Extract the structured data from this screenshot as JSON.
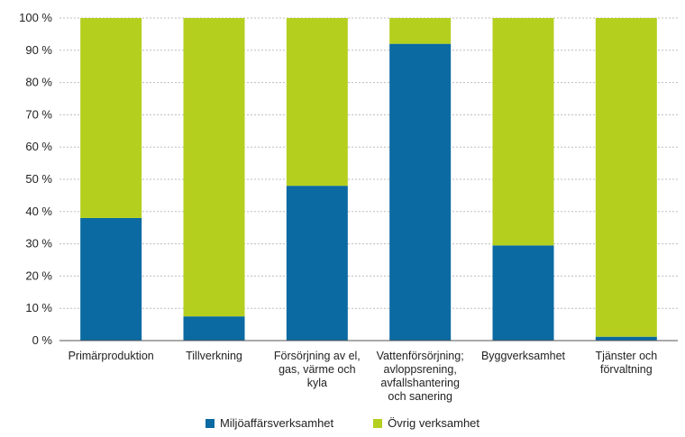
{
  "colors": {
    "series1": "#0a6aa1",
    "series2": "#b5cf1f",
    "gridline": "#bdbdbd",
    "axis": "#555555",
    "text": "#222222"
  },
  "chart_data": {
    "type": "bar",
    "stacked": true,
    "ylim": [
      0,
      100
    ],
    "yticks": [
      0,
      10,
      20,
      30,
      40,
      50,
      60,
      70,
      80,
      90,
      100
    ],
    "ytick_labels": [
      "0 %",
      "10 %",
      "20 %",
      "30 %",
      "40 %",
      "50 %",
      "60 %",
      "70 %",
      "80 %",
      "90 %",
      "100 %"
    ],
    "grid": true,
    "legend_position": "bottom",
    "categories": [
      [
        "Primärproduktion"
      ],
      [
        "Tillverkning"
      ],
      [
        "Försörjning av el,",
        "gas, värme och",
        "kyla"
      ],
      [
        "Vattenförsörjning;",
        "avloppsrening,",
        "avfallshantering",
        "och sanering"
      ],
      [
        "Byggverksamhet"
      ],
      [
        "Tjänster och",
        "förvaltning"
      ]
    ],
    "series": [
      {
        "name": "Miljöaffärsverksamhet",
        "values": [
          38,
          7.5,
          48,
          92,
          29.5,
          1.2
        ]
      },
      {
        "name": "Övrig verksamhet",
        "values": [
          62,
          92.5,
          52,
          8,
          70.5,
          98.8
        ]
      }
    ]
  }
}
